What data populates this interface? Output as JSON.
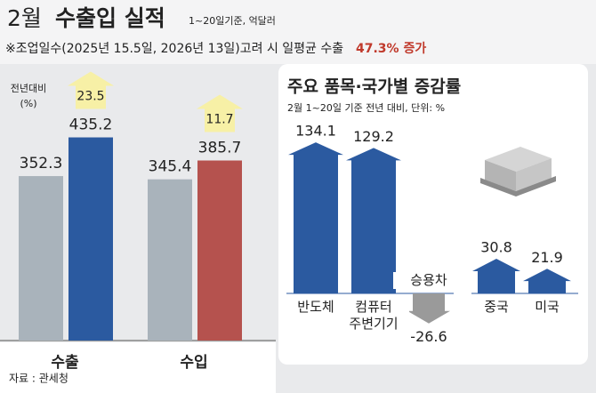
{
  "header": {
    "title_month": "2월",
    "title": "수출입 실적",
    "subtitle": "1~20일기준, 억달러",
    "note": "※조업일수(2025년 15.5일, 2026년 13일)고려 시 일평균 수출",
    "note_highlight": "47.3% 증가"
  },
  "chart_data": [
    {
      "type": "bar",
      "categories": [
        "수출",
        "수입"
      ],
      "series": [
        {
          "color": "#a9b3bb",
          "values": [
            352.3,
            345.4
          ]
        },
        {
          "colors": [
            "#2b5aa0",
            "#b5524e"
          ],
          "values": [
            435.2,
            385.7
          ]
        }
      ],
      "ylim": [
        0,
        480
      ],
      "change_label": [
        "전년대비",
        "(%)"
      ],
      "change_values": [
        23.5,
        11.7
      ],
      "change_color": "#f7f0a6"
    },
    {
      "type": "arrow-bar",
      "title": "주요 품목·국가별 증감률",
      "subtitle": "2월 1~20일 기준 전년 대비, 단위: %",
      "categories": [
        "반도체",
        "컴퓨터\n주변기기",
        "승용차",
        "중국",
        "미국"
      ],
      "values": [
        134.1,
        129.2,
        -26.6,
        30.8,
        21.9
      ],
      "color": "#2b5aa0",
      "negative_color": "#9a9a9a",
      "ylim": [
        -30,
        150
      ]
    }
  ],
  "source": "자료 : 관세청"
}
